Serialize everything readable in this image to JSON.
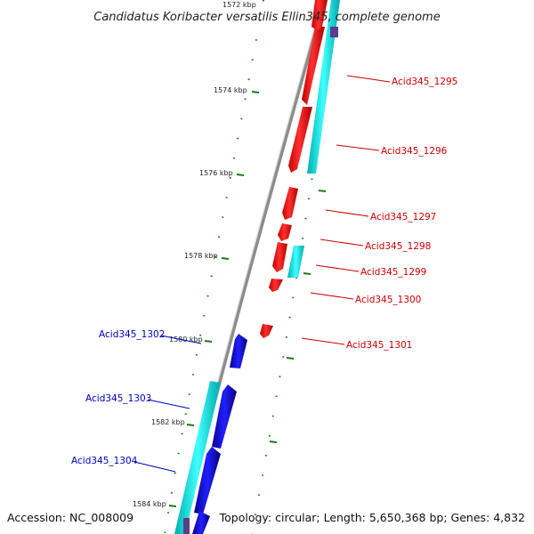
{
  "title": "Candidatus Koribacter versatilis Ellin345, complete genome",
  "accession_text": "Accession: NC_008009",
  "summary_text": "Topology: circular; Length: 5,650,368 bp; Genes: 4,832",
  "colors": {
    "forward_gene": "#ff1a1a",
    "reverse_gene": "#1a10e0",
    "cds_forward": "#00e5e5",
    "cds_reverse": "#00e5e5",
    "tick": "#1a7a1a",
    "backbone": "#8c8c8c",
    "label_forward": "#cc0000",
    "label_reverse": "#0000bb"
  },
  "axis": {
    "unit": "kbp",
    "ticks": [
      "1572 kbp",
      "1574 kbp",
      "1576 kbp",
      "1578 kbp",
      "1580 kbp",
      "1582 kbp",
      "1584 kbp"
    ]
  },
  "genes_forward": [
    {
      "id": "Acid345_1295"
    },
    {
      "id": "Acid345_1296"
    },
    {
      "id": "Acid345_1297"
    },
    {
      "id": "Acid345_1298"
    },
    {
      "id": "Acid345_1299"
    },
    {
      "id": "Acid345_1300"
    },
    {
      "id": "Acid345_1301"
    }
  ],
  "genes_reverse": [
    {
      "id": "Acid345_1302"
    },
    {
      "id": "Acid345_1303"
    },
    {
      "id": "Acid345_1304"
    }
  ]
}
